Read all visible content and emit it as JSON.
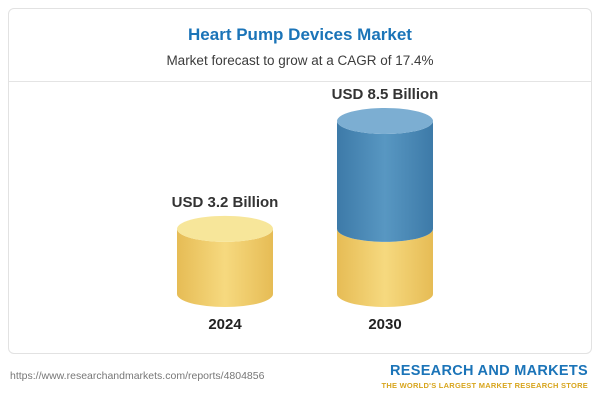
{
  "page": {
    "title": "Heart Pump Devices Market",
    "subtitle": "Market forecast to grow at a CAGR of 17.4%"
  },
  "chart_data": {
    "type": "bar",
    "style": "3d-cylinder",
    "title": "Heart Pump Devices Market",
    "subtitle": "Market forecast to grow at a CAGR of 17.4%",
    "categories": [
      "2024",
      "2030"
    ],
    "values": [
      3.2,
      8.5
    ],
    "value_labels": [
      "USD 3.2 Billion",
      "USD 8.5 Billion"
    ],
    "unit": "USD Billion",
    "cagr": "17.4%",
    "ylim": [
      0,
      8.5
    ],
    "grid": false,
    "legend": false,
    "segments": [
      {
        "category": "2024",
        "segments": [
          {
            "value": 3.2,
            "color": "base"
          }
        ]
      },
      {
        "category": "2030",
        "segments": [
          {
            "value": 3.2,
            "color": "base"
          },
          {
            "value": 5.3,
            "color": "growth"
          }
        ]
      }
    ],
    "colors": {
      "base": {
        "edge": "#E6BC55",
        "mid": "#F6D97F",
        "top": "#F7E69A"
      },
      "growth": {
        "edge": "#3D7AA8",
        "mid": "#5897C2",
        "top": "#7CAED2"
      }
    }
  },
  "footer": {
    "url": "https://www.researchandmarkets.com/reports/4804856",
    "logo_text": "RESEARCH AND MARKETS",
    "logo_tagline": "THE WORLD'S LARGEST MARKET RESEARCH STORE"
  },
  "accent_colors": {
    "title_blue": "#1B74B8",
    "logo_gold": "#D8A51D"
  }
}
